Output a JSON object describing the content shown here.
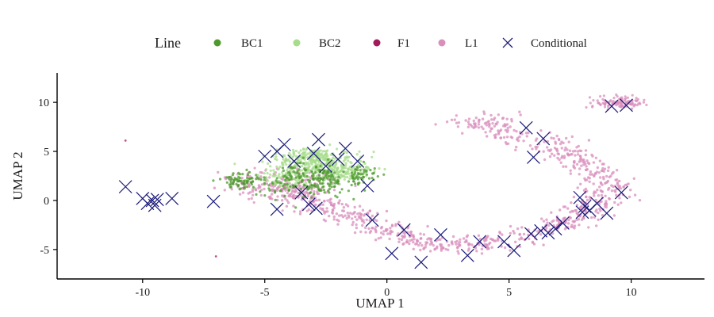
{
  "chart_data": {
    "type": "scatter",
    "title": "",
    "xlabel": "UMAP 1",
    "ylabel": "UMAP 2",
    "xlim": [
      -13.5,
      13
    ],
    "ylim": [
      -8,
      13
    ],
    "x_ticks": [
      -10,
      -5,
      0,
      5,
      10
    ],
    "y_ticks": [
      -5,
      0,
      5,
      10
    ],
    "x_tick_labels": [
      "-10",
      "-5",
      "0",
      "5",
      "10"
    ],
    "y_tick_labels": [
      "-5",
      "0",
      "5",
      "10"
    ],
    "grid": false,
    "legend": {
      "title": "Line",
      "placement": "top",
      "entries": [
        {
          "label": "BC1",
          "marker": "dot",
          "color": "#4e9a2e"
        },
        {
          "label": "BC2",
          "marker": "dot",
          "color": "#a6dc8a"
        },
        {
          "label": "F1",
          "marker": "dot",
          "color": "#a3195b"
        },
        {
          "label": "L1",
          "marker": "dot",
          "color": "#d98fbc"
        },
        {
          "label": "Conditional",
          "marker": "x",
          "color": "#1a1a7a"
        }
      ]
    },
    "series": [
      {
        "name": "BC2",
        "color": "#a6dc8a",
        "clusters": [
          {
            "cx": -3.0,
            "cy": 4.2,
            "sx": 1.3,
            "sy": 0.9,
            "n": 260
          },
          {
            "cx": -2.0,
            "cy": 3.0,
            "sx": 1.2,
            "sy": 1.0,
            "n": 160
          },
          {
            "cx": -4.0,
            "cy": 2.2,
            "sx": 1.2,
            "sy": 1.0,
            "n": 100
          }
        ]
      },
      {
        "name": "BC1",
        "color": "#4e9a2e",
        "clusters": [
          {
            "cx": -3.3,
            "cy": 2.0,
            "sx": 1.5,
            "sy": 1.4,
            "n": 200
          },
          {
            "cx": -6.0,
            "cy": 2.0,
            "sx": 0.7,
            "sy": 0.7,
            "n": 70
          },
          {
            "cx": -1.2,
            "cy": 2.4,
            "sx": 0.8,
            "sy": 0.9,
            "n": 60
          }
        ]
      },
      {
        "name": "L1",
        "color": "#d98fbc",
        "path": [
          [
            -6.2,
            1.8
          ],
          [
            -4.0,
            0.8
          ],
          [
            -2.5,
            -0.5
          ],
          [
            -1.0,
            -2.0
          ],
          [
            0.5,
            -3.5
          ],
          [
            2.0,
            -4.6
          ],
          [
            3.5,
            -4.6
          ],
          [
            5.0,
            -4.0
          ],
          [
            6.5,
            -3.2
          ],
          [
            8.0,
            -1.3
          ],
          [
            9.2,
            1.2
          ],
          [
            8.2,
            3.5
          ],
          [
            6.5,
            5.8
          ],
          [
            4.5,
            7.0
          ],
          [
            3.2,
            7.9
          ],
          [
            5.0,
            8.3
          ]
        ],
        "path_spread": 0.85,
        "path_n": 900,
        "clusters": [
          {
            "cx": 9.5,
            "cy": 10.0,
            "sx": 0.9,
            "sy": 0.5,
            "n": 120
          },
          {
            "cx": -3.8,
            "cy": 1.5,
            "sx": 1.6,
            "sy": 1.4,
            "n": 140
          }
        ]
      },
      {
        "name": "F1",
        "color": "#a3195b",
        "points": [
          [
            -7.0,
            -5.7
          ],
          [
            -10.7,
            6.1
          ]
        ]
      },
      {
        "name": "Conditional",
        "color": "#1a1a7a",
        "marker": "x",
        "points": [
          [
            -10.7,
            1.4
          ],
          [
            -10.0,
            0.2
          ],
          [
            -9.6,
            0.0
          ],
          [
            -9.8,
            -0.3
          ],
          [
            -9.4,
            0.1
          ],
          [
            -9.5,
            -0.5
          ],
          [
            -8.8,
            0.2
          ],
          [
            -7.1,
            -0.1
          ],
          [
            -5.0,
            4.5
          ],
          [
            -4.5,
            5.0
          ],
          [
            -4.2,
            5.7
          ],
          [
            -3.8,
            4.0
          ],
          [
            -3.0,
            4.8
          ],
          [
            -2.8,
            6.2
          ],
          [
            -2.5,
            3.5
          ],
          [
            -2.0,
            4.2
          ],
          [
            -1.7,
            5.3
          ],
          [
            -1.2,
            4.0
          ],
          [
            -0.8,
            1.5
          ],
          [
            -3.5,
            0.8
          ],
          [
            -3.2,
            -0.4
          ],
          [
            -2.9,
            -0.8
          ],
          [
            -4.5,
            -0.9
          ],
          [
            -0.6,
            -2.0
          ],
          [
            0.7,
            -3.0
          ],
          [
            2.2,
            -3.5
          ],
          [
            0.2,
            -5.4
          ],
          [
            1.4,
            -6.3
          ],
          [
            3.3,
            -5.6
          ],
          [
            3.8,
            -4.2
          ],
          [
            4.8,
            -4.2
          ],
          [
            5.2,
            -5.1
          ],
          [
            5.7,
            7.4
          ],
          [
            6.4,
            6.3
          ],
          [
            6.0,
            4.4
          ],
          [
            5.9,
            -3.4
          ],
          [
            6.3,
            -3.1
          ],
          [
            6.6,
            -3.3
          ],
          [
            6.9,
            -2.9
          ],
          [
            7.2,
            -2.3
          ],
          [
            7.9,
            0.3
          ],
          [
            8.1,
            -0.6
          ],
          [
            8.3,
            -1.0
          ],
          [
            8.0,
            -1.2
          ],
          [
            9.0,
            -1.3
          ],
          [
            8.6,
            -0.3
          ],
          [
            9.6,
            0.8
          ],
          [
            9.2,
            9.6
          ],
          [
            9.8,
            9.7
          ]
        ]
      }
    ]
  }
}
